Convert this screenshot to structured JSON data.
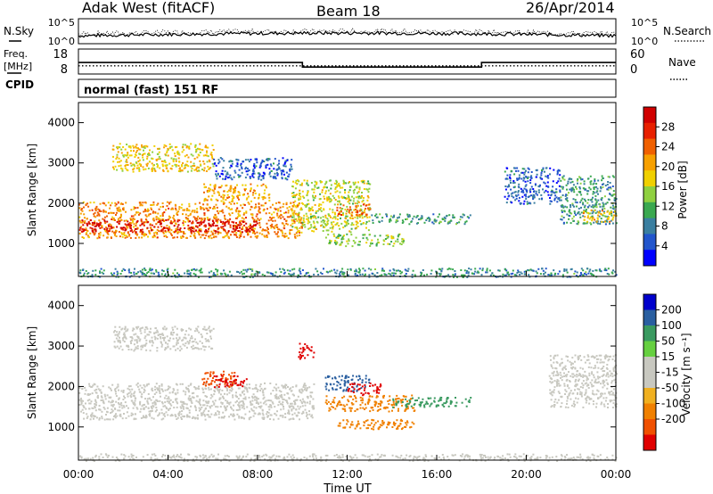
{
  "header": {
    "station": "Adak West (fitACF)",
    "beam": "Beam 18",
    "date": "26/Apr/2014"
  },
  "chart_data": [
    {
      "id": "noise",
      "type": "line",
      "left_label": "N.Sky",
      "right_label": "N.Search",
      "yticks_left": [
        "10^5",
        "10^0"
      ],
      "yticks_right": [
        "10^5",
        "10^0"
      ],
      "series": [
        {
          "name": "N.Sky",
          "style": "solid"
        },
        {
          "name": "N.Search",
          "style": "dotted"
        }
      ]
    },
    {
      "id": "freq",
      "type": "line",
      "left_label_1": "Freq.",
      "left_label_2": "[MHz]",
      "right_label": "Nave",
      "yticks_left": [
        "18",
        "8"
      ],
      "yticks_right": [
        "60",
        "0"
      ],
      "freq_segments": [
        {
          "x_start": 0,
          "x_end": 10,
          "y": 12.5
        },
        {
          "x_start": 10,
          "x_end": 18,
          "y": 10.2
        },
        {
          "x_start": 18,
          "x_end": 24,
          "y": 12.5
        }
      ],
      "nave_level": 17
    },
    {
      "id": "cpid",
      "type": "table",
      "label": "CPID",
      "text": "normal (fast) 151 RF"
    },
    {
      "id": "power",
      "type": "heatmap",
      "ylabel": "Slant Range [km]",
      "ylim": [
        180,
        4500
      ],
      "yticks": [
        1000,
        2000,
        3000,
        4000
      ],
      "colorbar_label": "Power [dB]",
      "colorbar_ticks": [
        4,
        8,
        12,
        16,
        20,
        24,
        28
      ],
      "colorbar_range": [
        0,
        32
      ],
      "colorbar_colors": [
        "#0000ff",
        "#2255cc",
        "#3a7fa0",
        "#3aa850",
        "#8fd040",
        "#f0d000",
        "#f7a000",
        "#f06000",
        "#e82000",
        "#d00000"
      ],
      "echo_regions": [
        {
          "x0": 0.0,
          "x1": 10.0,
          "y0": 1150,
          "y1": 2050,
          "level": 22
        },
        {
          "x0": 0.0,
          "x1": 8.0,
          "y0": 1300,
          "y1": 1600,
          "level": 30
        },
        {
          "x0": 1.5,
          "x1": 6.0,
          "y0": 2800,
          "y1": 3500,
          "level": 18
        },
        {
          "x0": 5.5,
          "x1": 8.5,
          "y0": 2050,
          "y1": 2500,
          "level": 20
        },
        {
          "x0": 6.0,
          "x1": 9.5,
          "y0": 2600,
          "y1": 3150,
          "level": 6
        },
        {
          "x0": 9.5,
          "x1": 13.0,
          "y0": 1300,
          "y1": 2600,
          "level": 16
        },
        {
          "x0": 11.5,
          "x1": 13.0,
          "y0": 1700,
          "y1": 2000,
          "level": 24
        },
        {
          "x0": 11.0,
          "x1": 14.5,
          "y0": 950,
          "y1": 1250,
          "level": 14
        },
        {
          "x0": 13.0,
          "x1": 17.5,
          "y0": 1500,
          "y1": 1750,
          "level": 10
        },
        {
          "x0": 19.0,
          "x1": 21.5,
          "y0": 2000,
          "y1": 2900,
          "level": 6
        },
        {
          "x0": 21.5,
          "x1": 24.0,
          "y0": 1500,
          "y1": 2700,
          "level": 10
        },
        {
          "x0": 22.5,
          "x1": 24.0,
          "y0": 1550,
          "y1": 1850,
          "level": 20
        },
        {
          "x0": 0.0,
          "x1": 24.0,
          "y0": 180,
          "y1": 400,
          "level": 9
        }
      ]
    },
    {
      "id": "velocity",
      "type": "heatmap",
      "ylabel": "Slant Range [km]",
      "ylim": [
        180,
        4500
      ],
      "yticks": [
        1000,
        2000,
        3000,
        4000
      ],
      "xlabel": "Time UT",
      "xlim": [
        0,
        24
      ],
      "xticks": [
        "00:00",
        "04:00",
        "08:00",
        "12:00",
        "16:00",
        "20:00",
        "00:00"
      ],
      "colorbar_label": "Velocity [m s⁻¹]",
      "colorbar_ticks": [
        200,
        100,
        50,
        15,
        -15,
        -50,
        -100,
        -200
      ],
      "colorbar_colors": [
        "#0000cc",
        "#2a5fa0",
        "#3a9a60",
        "#66d040",
        "#c8c8c0",
        "#c8c8c0",
        "#f0b020",
        "#f08000",
        "#f05000",
        "#e00000"
      ],
      "echo_regions": [
        {
          "x0": 0.0,
          "x1": 10.5,
          "y0": 1200,
          "y1": 2100,
          "level": 0
        },
        {
          "x0": 1.5,
          "x1": 6.0,
          "y0": 2900,
          "y1": 3500,
          "level": 0
        },
        {
          "x0": 5.5,
          "x1": 7.0,
          "y0": 2000,
          "y1": 2400,
          "level": -80
        },
        {
          "x0": 6.0,
          "x1": 7.5,
          "y0": 2000,
          "y1": 2300,
          "level": -200
        },
        {
          "x0": 9.8,
          "x1": 10.5,
          "y0": 2700,
          "y1": 3100,
          "level": -200
        },
        {
          "x0": 11.0,
          "x1": 13.0,
          "y0": 1900,
          "y1": 2300,
          "level": 80
        },
        {
          "x0": 12.0,
          "x1": 13.5,
          "y0": 1800,
          "y1": 2100,
          "level": -200
        },
        {
          "x0": 11.0,
          "x1": 15.0,
          "y0": 1400,
          "y1": 1800,
          "level": -40
        },
        {
          "x0": 14.0,
          "x1": 17.5,
          "y0": 1500,
          "y1": 1750,
          "level": 60
        },
        {
          "x0": 11.5,
          "x1": 15.0,
          "y0": 950,
          "y1": 1200,
          "level": -40
        },
        {
          "x0": 21.0,
          "x1": 24.0,
          "y0": 1500,
          "y1": 2800,
          "level": 0
        },
        {
          "x0": 0.0,
          "x1": 24.0,
          "y0": 180,
          "y1": 350,
          "level": 0
        }
      ]
    }
  ]
}
